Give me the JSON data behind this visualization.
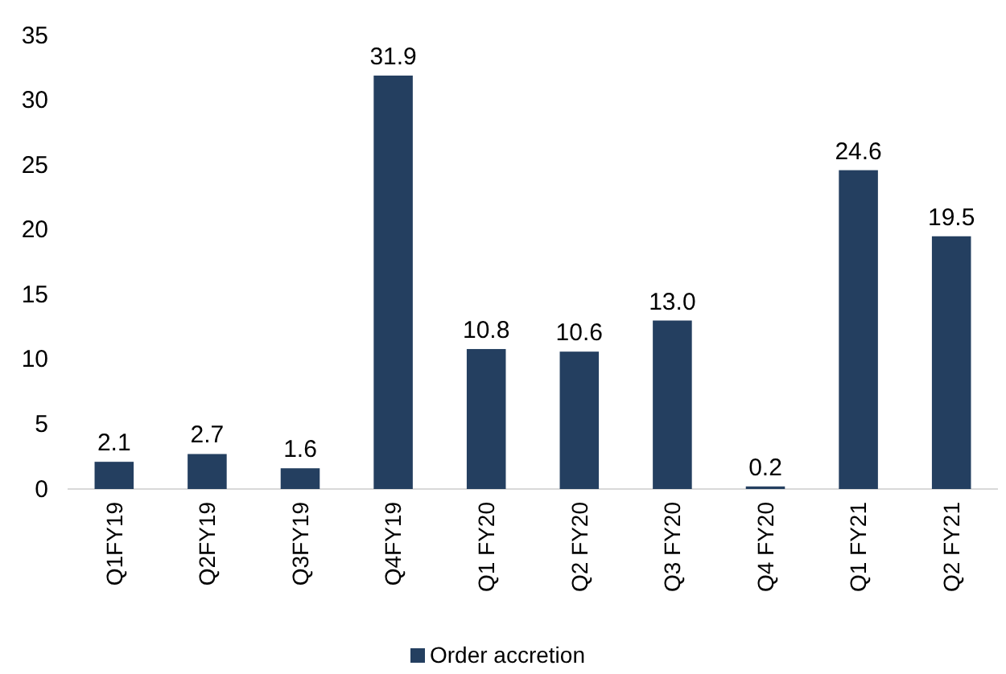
{
  "chart_data": {
    "type": "bar",
    "categories": [
      "Q1FY19",
      "Q2FY19",
      "Q3FY19",
      "Q4FY19",
      "Q1 FY20",
      "Q2 FY20",
      "Q3 FY20",
      "Q4 FY20",
      "Q1 FY21",
      "Q2 FY21"
    ],
    "series": [
      {
        "name": "Order accretion",
        "color": "#243f60",
        "values": [
          2.1,
          2.7,
          1.6,
          31.9,
          10.8,
          10.6,
          13.0,
          0.2,
          24.6,
          19.5
        ],
        "value_labels": [
          "2.1",
          "2.7",
          "1.6",
          "31.9",
          "10.8",
          "10.6",
          "13.0",
          "0.2",
          "24.6",
          "19.5"
        ]
      }
    ],
    "ylim": [
      0,
      35
    ],
    "yticks": [
      0,
      5,
      10,
      15,
      20,
      25,
      30,
      35
    ],
    "legend": "bottom"
  }
}
